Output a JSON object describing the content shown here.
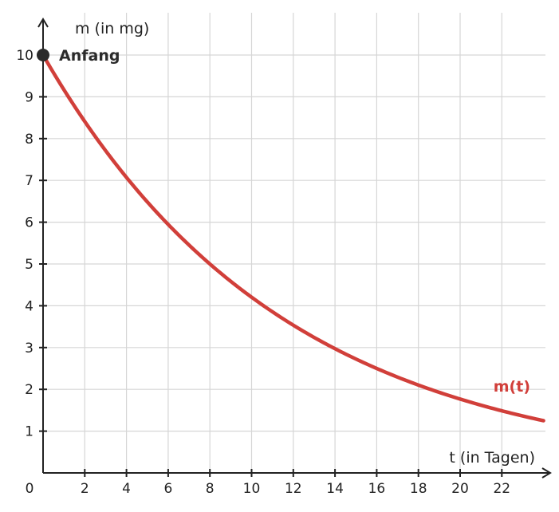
{
  "chart_data": {
    "type": "line",
    "xlabel": "t (in Tagen)",
    "ylabel": "m (in mg)",
    "xlim": [
      0,
      24
    ],
    "ylim": [
      0,
      11
    ],
    "x_ticks": [
      2,
      4,
      6,
      8,
      10,
      12,
      14,
      16,
      18,
      20,
      22
    ],
    "y_ticks": [
      1,
      2,
      3,
      4,
      5,
      6,
      7,
      8,
      9,
      10
    ],
    "origin_label": "0",
    "grid": true,
    "series": [
      {
        "name": "m(t)",
        "color": "#d13f3a",
        "x": [
          0,
          2,
          4,
          6,
          8,
          10,
          12,
          14,
          16,
          18,
          20,
          22,
          24
        ],
        "y": [
          10,
          8.41,
          7.07,
          5.95,
          5.0,
          4.2,
          3.54,
          2.97,
          2.5,
          2.1,
          1.77,
          1.49,
          1.25
        ]
      }
    ],
    "annotations": [
      {
        "text": "Anfang",
        "x": 0,
        "y": 10
      }
    ]
  }
}
